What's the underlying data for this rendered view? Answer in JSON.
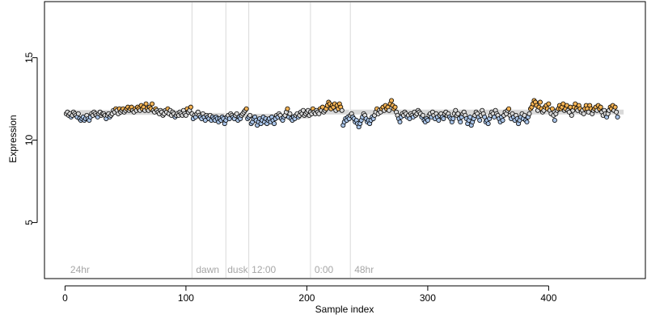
{
  "chart_data": {
    "type": "scatter",
    "title": "",
    "xlabel": "Sample index",
    "ylabel": "Expression",
    "xlim": [
      -17,
      480
    ],
    "ylim": [
      1.6,
      18.4
    ],
    "x_ticks": [
      0,
      100,
      200,
      300,
      400
    ],
    "y_ticks": [
      5,
      10,
      15
    ],
    "grid": false,
    "legend": "none",
    "colors": {
      "low": "#a9c4e8",
      "mid": "#d9d9d9",
      "high": "#f5b456",
      "point_edge": "#000000",
      "boundary": "#d9d9d9",
      "region_label": "#a6a6a6"
    },
    "region_boundaries": [
      105,
      133,
      152,
      203,
      236
    ],
    "region_labels": [
      {
        "text": "24hr",
        "x": 3
      },
      {
        "text": "dawn",
        "x": 107
      },
      {
        "text": "dusk",
        "x": 133
      },
      {
        "text": "12:00",
        "x": 153
      },
      {
        "text": "0:00",
        "x": 205
      },
      {
        "text": "48hr",
        "x": 238
      }
    ],
    "segments": [
      {
        "x_start": 1,
        "x_end": 104,
        "level": 11.68
      },
      {
        "x_start": 105,
        "x_end": 132,
        "level": 11.5
      },
      {
        "x_start": 133,
        "x_end": 151,
        "level": 11.5
      },
      {
        "x_start": 152,
        "x_end": 202,
        "level": 11.45
      },
      {
        "x_start": 203,
        "x_end": 235,
        "level": 11.7
      },
      {
        "x_start": 236,
        "x_end": 462,
        "level": 11.7
      }
    ],
    "series": [
      {
        "x_start": 1,
        "x_step": 1,
        "y": [
          11.6,
          11.7,
          11.5,
          11.6,
          11.4,
          11.5,
          11.7,
          11.6,
          11.5,
          11.4,
          11.6,
          11.3,
          11.2,
          11.3,
          11.4,
          11.2,
          11.3,
          11.5,
          11.3,
          11.2,
          11.4,
          11.6,
          11.5,
          11.7,
          11.6,
          11.5,
          11.4,
          11.6,
          11.7,
          11.5,
          11.6,
          11.6,
          11.5,
          11.3,
          11.5,
          11.6,
          11.4,
          11.5,
          11.6,
          11.8,
          11.7,
          11.9,
          11.8,
          11.6,
          11.9,
          11.7,
          11.8,
          11.9,
          11.7,
          11.8,
          11.9,
          12.0,
          11.8,
          11.9,
          12.0,
          11.8,
          11.7,
          11.9,
          11.8,
          12.0,
          11.9,
          11.8,
          12.1,
          11.9,
          12.0,
          11.8,
          12.2,
          11.9,
          11.8,
          12.0,
          11.9,
          12.2,
          11.8,
          11.7,
          11.9,
          11.8,
          11.7,
          11.6,
          11.8,
          11.7,
          11.5,
          11.6,
          11.8,
          11.7,
          11.9,
          11.6,
          11.8,
          11.5,
          11.7,
          11.6,
          11.4,
          11.5,
          11.6,
          11.5,
          11.7,
          11.6,
          11.5,
          11.8,
          11.6,
          11.5,
          11.9,
          11.7,
          11.8,
          12.0,
          11.6,
          11.3,
          11.5,
          11.4,
          11.6,
          11.7,
          11.5,
          11.4,
          11.3,
          11.6,
          11.4,
          11.2,
          11.5,
          11.4,
          11.3,
          11.5,
          11.2,
          11.4,
          11.3,
          11.2,
          11.4,
          11.3,
          11.1,
          11.3,
          11.2,
          11.4,
          11.3,
          11.0,
          11.2,
          11.4,
          11.5,
          11.3,
          11.6,
          11.5,
          11.4,
          11.3,
          11.5,
          11.6,
          11.2,
          11.4,
          11.3,
          11.5,
          11.6,
          11.7,
          11.8,
          11.9,
          11.3,
          11.4,
          11.5,
          11.0,
          11.1,
          11.3,
          11.4,
          11.2,
          10.9,
          11.1,
          11.3,
          11.0,
          11.2,
          11.4,
          11.1,
          11.3,
          11.0,
          11.2,
          11.3,
          11.1,
          11.4,
          11.2,
          11.0,
          11.3,
          11.5,
          11.4,
          11.6,
          11.5,
          11.3,
          11.2,
          11.4,
          11.5,
          11.7,
          11.9,
          11.4,
          11.6,
          11.3,
          11.2,
          11.4,
          11.3,
          11.5,
          11.6,
          11.4,
          11.5,
          11.7,
          11.6,
          11.8,
          11.5,
          11.6,
          11.7,
          11.8,
          11.5,
          11.7,
          11.6,
          11.9,
          11.7,
          11.6,
          11.8,
          11.7,
          11.6,
          11.9,
          11.8,
          12.0,
          11.7,
          11.8,
          11.9,
          12.1,
          12.3,
          12.2,
          11.9,
          12.1,
          12.0,
          12.2,
          11.8,
          12.1,
          11.9,
          12.2,
          12.0,
          11.8,
          10.9,
          11.1,
          11.3,
          11.2,
          11.4,
          11.3,
          11.5,
          11.6,
          11.4,
          11.3,
          11.1,
          11.2,
          11.0,
          10.8,
          11.0,
          11.2,
          11.4,
          11.6,
          11.5,
          11.3,
          11.1,
          11.2,
          11.0,
          11.2,
          11.4,
          11.3,
          11.5,
          11.7,
          11.9,
          11.6,
          11.8,
          11.7,
          11.9,
          12.0,
          11.8,
          12.1,
          11.9,
          12.0,
          11.8,
          12.2,
          12.4,
          12.1,
          11.9,
          12.0,
          11.7,
          11.5,
          11.3,
          11.1,
          11.4,
          11.6,
          11.5,
          11.7,
          11.6,
          11.4,
          11.5,
          11.3,
          11.6,
          11.5,
          11.4,
          11.7,
          11.5,
          11.6,
          11.8,
          11.7,
          11.6,
          11.4,
          11.5,
          11.2,
          11.1,
          11.3,
          11.2,
          11.5,
          11.6,
          11.4,
          11.7,
          11.5,
          11.3,
          11.6,
          11.4,
          11.2,
          11.5,
          11.6,
          11.4,
          11.3,
          11.6,
          11.7,
          11.5,
          11.6,
          11.4,
          11.3,
          11.1,
          11.3,
          11.6,
          11.8,
          11.5,
          11.6,
          11.3,
          11.1,
          11.4,
          11.6,
          11.7,
          11.5,
          11.3,
          11.0,
          11.2,
          11.4,
          10.9,
          11.1,
          11.3,
          11.5,
          11.7,
          11.6,
          11.4,
          11.2,
          11.5,
          11.8,
          11.6,
          11.4,
          11.1,
          11.2,
          11.0,
          11.3,
          11.5,
          11.7,
          11.6,
          11.4,
          11.8,
          11.6,
          11.5,
          11.3,
          11.1,
          11.4,
          11.2,
          11.5,
          11.7,
          11.6,
          11.8,
          11.9,
          11.5,
          11.3,
          11.6,
          11.4,
          11.2,
          11.5,
          11.3,
          11.0,
          11.2,
          11.4,
          11.6,
          11.3,
          11.5,
          11.2,
          11.1,
          11.4,
          11.6,
          11.9,
          12.0,
          12.2,
          12.4,
          12.3,
          12.1,
          11.8,
          12.0,
          12.3,
          11.9,
          11.7,
          11.8,
          12.0,
          12.1,
          11.9,
          12.2,
          11.8,
          11.6,
          11.9,
          11.5,
          11.2,
          11.6,
          11.8,
          11.9,
          12.1,
          11.9,
          12.0,
          12.2,
          11.8,
          11.9,
          12.1,
          11.8,
          11.7,
          12.0,
          11.5,
          11.8,
          12.0,
          12.2,
          11.9,
          11.8,
          12.1,
          11.9,
          11.7,
          11.8,
          11.6,
          11.9,
          12.1,
          11.9,
          11.7,
          12.1,
          11.9,
          11.6,
          11.8,
          11.9,
          12.0,
          11.8,
          12.1,
          11.9,
          12.0,
          11.7,
          11.5,
          11.8,
          11.6,
          11.4,
          11.6,
          11.8,
          12.0,
          11.9,
          12.1,
          11.8,
          12.0,
          11.7,
          11.4
        ]
      }
    ]
  }
}
